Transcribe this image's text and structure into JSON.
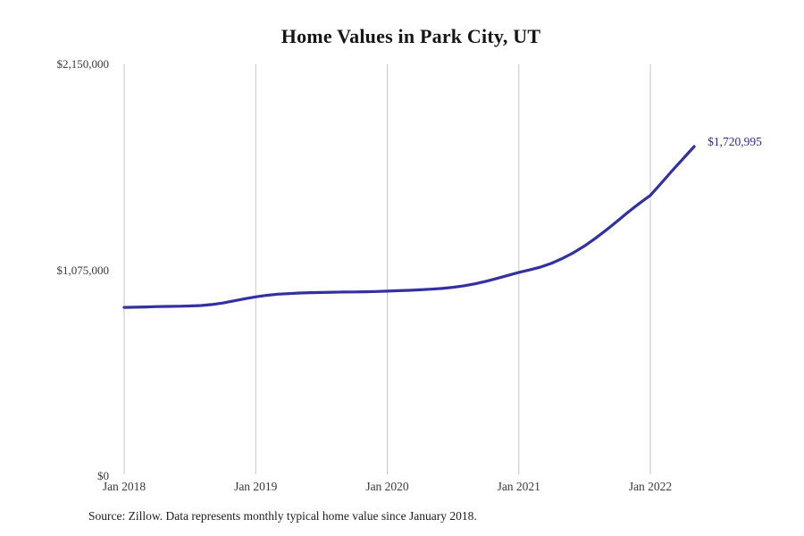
{
  "chart": {
    "title": "Home Values in Park City, UT",
    "source": "Source: Zillow. Data represents monthly typical home value since January 2018.",
    "end_label": "$1,720,995",
    "line_color": "#3331a0",
    "grid_color": "#c7c7c7",
    "y_ticks": [
      {
        "label": "$2,150,000",
        "value": 2150000
      },
      {
        "label": "$1,075,000",
        "value": 1075000
      },
      {
        "label": "$0",
        "value": 0
      }
    ],
    "x_ticks": [
      {
        "label": "Jan 2018"
      },
      {
        "label": "Jan 2019"
      },
      {
        "label": "Jan 2020"
      },
      {
        "label": "Jan 2021"
      },
      {
        "label": "Jan 2022"
      }
    ]
  },
  "chart_data": {
    "type": "line",
    "title": "Home Values in Park City, UT",
    "xlabel": "",
    "ylabel": "",
    "ylim": [
      0,
      2150000
    ],
    "y_tick_values": [
      0,
      1075000,
      2150000
    ],
    "x_tick_labels": [
      "Jan 2018",
      "Jan 2019",
      "Jan 2020",
      "Jan 2021",
      "Jan 2022"
    ],
    "grid": "vertical-only",
    "legend": false,
    "end_annotation": "$1,720,995",
    "x": [
      "Jan 2018",
      "Feb 2018",
      "Mar 2018",
      "Apr 2018",
      "May 2018",
      "Jun 2018",
      "Jul 2018",
      "Aug 2018",
      "Sep 2018",
      "Oct 2018",
      "Nov 2018",
      "Dec 2018",
      "Jan 2019",
      "Feb 2019",
      "Mar 2019",
      "Apr 2019",
      "May 2019",
      "Jun 2019",
      "Jul 2019",
      "Aug 2019",
      "Sep 2019",
      "Oct 2019",
      "Nov 2019",
      "Dec 2019",
      "Jan 2020",
      "Feb 2020",
      "Mar 2020",
      "Apr 2020",
      "May 2020",
      "Jun 2020",
      "Jul 2020",
      "Aug 2020",
      "Sep 2020",
      "Oct 2020",
      "Nov 2020",
      "Dec 2020",
      "Jan 2021",
      "Feb 2021",
      "Mar 2021",
      "Apr 2021",
      "May 2021",
      "Jun 2021",
      "Jul 2021",
      "Aug 2021",
      "Sep 2021",
      "Oct 2021",
      "Nov 2021",
      "Dec 2021",
      "Jan 2022",
      "Feb 2022",
      "Mar 2022",
      "Apr 2022",
      "May 2022"
    ],
    "values": [
      881000,
      882000,
      883500,
      885000,
      886000,
      887000,
      888500,
      891000,
      896000,
      904000,
      915000,
      926000,
      936000,
      944000,
      950000,
      953000,
      956000,
      958000,
      959000,
      960500,
      961000,
      961500,
      962500,
      964000,
      966000,
      968000,
      970000,
      973000,
      976000,
      980000,
      986000,
      994000,
      1004000,
      1017000,
      1032000,
      1048000,
      1064000,
      1077000,
      1092000,
      1112000,
      1137000,
      1167000,
      1202000,
      1242000,
      1286000,
      1332000,
      1380000,
      1424000,
      1466000,
      1530000,
      1595000,
      1658000,
      1720995
    ]
  }
}
